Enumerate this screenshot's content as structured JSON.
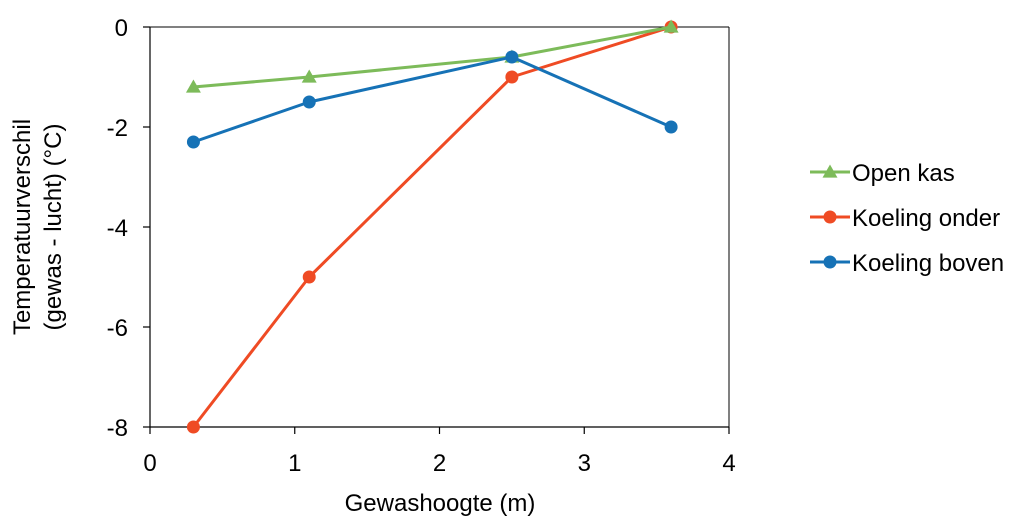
{
  "chart_data": {
    "type": "line",
    "xlabel": "Gewashoogte (m)",
    "ylabel_lines": [
      "Temperatuurverschil",
      "(gewas - lucht) (°C)"
    ],
    "xlim": [
      0,
      4
    ],
    "ylim": [
      -8,
      0
    ],
    "x_ticks": [
      "0",
      "1",
      "2",
      "3",
      "4"
    ],
    "y_ticks": [
      "0",
      "-2",
      "-4",
      "-6",
      "-8"
    ],
    "x_tick_values": [
      0,
      1,
      2,
      3,
      4
    ],
    "y_tick_values": [
      0,
      -2,
      -4,
      -6,
      -8
    ],
    "grid": false,
    "legend_position": "right",
    "series": [
      {
        "name": "Open kas",
        "color": "#7dbb5a",
        "marker": "triangle",
        "x": [
          0.3,
          1.1,
          2.5,
          3.6
        ],
        "y": [
          -1.2,
          -1.0,
          -0.6,
          0.0
        ]
      },
      {
        "name": "Koeling onder",
        "color": "#ef4b24",
        "marker": "circle",
        "x": [
          0.3,
          1.1,
          2.5,
          3.6
        ],
        "y": [
          -8.0,
          -5.0,
          -1.0,
          0.0
        ]
      },
      {
        "name": "Koeling boven",
        "color": "#1672b6",
        "marker": "circle",
        "x": [
          0.3,
          1.1,
          2.5,
          3.6
        ],
        "y": [
          -2.3,
          -1.5,
          -0.6,
          -2.0
        ]
      }
    ]
  }
}
